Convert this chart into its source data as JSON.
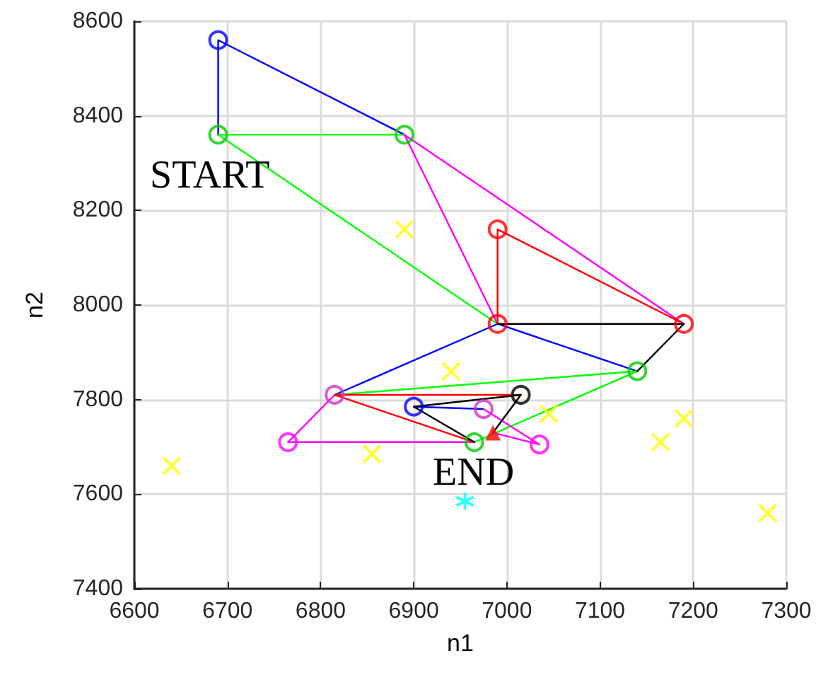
{
  "chart_data": {
    "type": "line",
    "xlabel": "n1",
    "ylabel": "n2",
    "xlim": [
      6600,
      7300
    ],
    "ylim": [
      7400,
      8600
    ],
    "xticks": [
      6600,
      6700,
      6800,
      6900,
      7000,
      7100,
      7200,
      7300
    ],
    "yticks": [
      7400,
      7600,
      7800,
      8000,
      8200,
      8400,
      8600
    ],
    "grid": true,
    "marker": "none",
    "line_style": "solid",
    "series": [
      {
        "color": "#0000ff",
        "x": [
          6690,
          6690,
          6890,
          null,
          7140,
          6990,
          6815,
          null,
          6900,
          6975
        ],
        "values": [
          8360,
          8560,
          8360,
          null,
          7860,
          7960,
          7810,
          null,
          7785,
          7780
        ]
      },
      {
        "color": "#00ff00",
        "x": [
          6890,
          6690,
          6990,
          null,
          6815,
          7140,
          6965
        ],
        "values": [
          8360,
          8360,
          7960,
          null,
          7810,
          7860,
          7710
        ]
      },
      {
        "color": "#ff00ff",
        "x": [
          6990,
          6890,
          7190,
          null,
          6815,
          6765,
          6965,
          null,
          6975,
          7035,
          6985
        ],
        "values": [
          7960,
          8360,
          7960,
          null,
          7810,
          7710,
          7710,
          null,
          7780,
          7705,
          7730
        ]
      },
      {
        "color": "#ff0000",
        "x": [
          6990,
          6990,
          7190,
          null,
          6815,
          6965,
          null,
          6815,
          7015
        ],
        "values": [
          7960,
          8160,
          7960,
          null,
          7810,
          7710,
          null,
          7810,
          7810
        ]
      },
      {
        "color": "#000000",
        "x": [
          6990,
          7190,
          7140,
          null,
          7015,
          6900,
          6965,
          null,
          7015,
          6985
        ],
        "values": [
          7960,
          7960,
          7860,
          null,
          7810,
          7785,
          7710,
          null,
          7810,
          7730
        ]
      },
      {
        "type": "scatter",
        "marker": "circle",
        "x": [
          6690,
          6690,
          6890,
          6990,
          6990,
          7190,
          7140,
          6815,
          6900,
          7015,
          6975,
          6765,
          6965,
          7035
        ],
        "values": [
          8560,
          8360,
          8360,
          8160,
          7960,
          7960,
          7860,
          7810,
          7785,
          7810,
          7780,
          7710,
          7710,
          7705
        ],
        "colors": [
          "#0000ff",
          "#00cc00",
          "#00cc00",
          "#ff0000",
          "#ff0000",
          "#ff0000",
          "#00cc00",
          "#cc33cc",
          "#0000ff",
          "#000000",
          "#cc33cc",
          "#ff00ff",
          "#00cc00",
          "#ff00ff"
        ]
      },
      {
        "type": "scatter",
        "marker": "triangle",
        "color": "#ff0000",
        "x": [
          6985
        ],
        "values": [
          7730
        ]
      },
      {
        "type": "scatter",
        "marker": "cross",
        "color": "#ffff00",
        "x": [
          6890,
          6640,
          6855,
          6940,
          7045,
          7165,
          7190,
          7280
        ],
        "values": [
          8160,
          7660,
          7685,
          7860,
          7770,
          7710,
          7760,
          7560
        ]
      },
      {
        "type": "scatter",
        "marker": "cross",
        "color": "#00ffff",
        "x": [
          6955
        ],
        "values": [
          7585
        ]
      }
    ],
    "annotations": [
      "START",
      "END"
    ]
  }
}
